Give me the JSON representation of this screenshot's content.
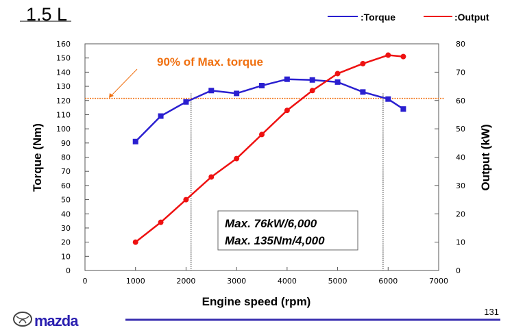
{
  "slide": {
    "title": "1.5 L",
    "page_number": "131",
    "logo_text": "mazda",
    "footer_line_color": "#3a2fb0"
  },
  "chart_data": {
    "type": "line",
    "xlabel": "Engine speed (rpm)",
    "ylabel": "Torque (Nm)",
    "y2label": "Output (kW)",
    "xlim": [
      0,
      7000
    ],
    "ylim": [
      0,
      160
    ],
    "y2lim": [
      0,
      80
    ],
    "x_ticks": [
      "0",
      "1000",
      "2000",
      "3000",
      "4000",
      "5000",
      "6000",
      "7000"
    ],
    "y_ticks": [
      "0",
      "10",
      "20",
      "30",
      "40",
      "50",
      "60",
      "70",
      "80",
      "90",
      "100",
      "110",
      "120",
      "130",
      "140",
      "150",
      "160"
    ],
    "y2_ticks": [
      "0",
      "10",
      "20",
      "30",
      "40",
      "50",
      "60",
      "70",
      "80"
    ],
    "grid": false,
    "legend_position": "top-right",
    "x": [
      1000,
      1500,
      2000,
      2500,
      3000,
      3500,
      4000,
      4500,
      5000,
      5500,
      6000,
      6300
    ],
    "series": [
      {
        "name": ":Torque",
        "axis": "left",
        "color": "#2a1fd0",
        "marker": "square",
        "values": [
          91,
          109,
          119,
          127,
          125,
          130.5,
          135,
          134.5,
          133,
          126,
          121,
          114
        ]
      },
      {
        "name": ":Output",
        "axis": "right",
        "color": "#ee1111",
        "marker": "circle",
        "values": [
          10,
          17,
          25,
          33,
          39.5,
          48,
          56.5,
          63.5,
          69.5,
          73,
          76,
          75.5
        ]
      }
    ],
    "reference_line": {
      "label": "90% of Max. torque",
      "value": 121.5,
      "color": "#f07010"
    },
    "vertical_markers": [
      2100,
      5900
    ],
    "annotation": [
      "Max. 76kW/6,000",
      "Max. 135Nm/4,000"
    ]
  }
}
